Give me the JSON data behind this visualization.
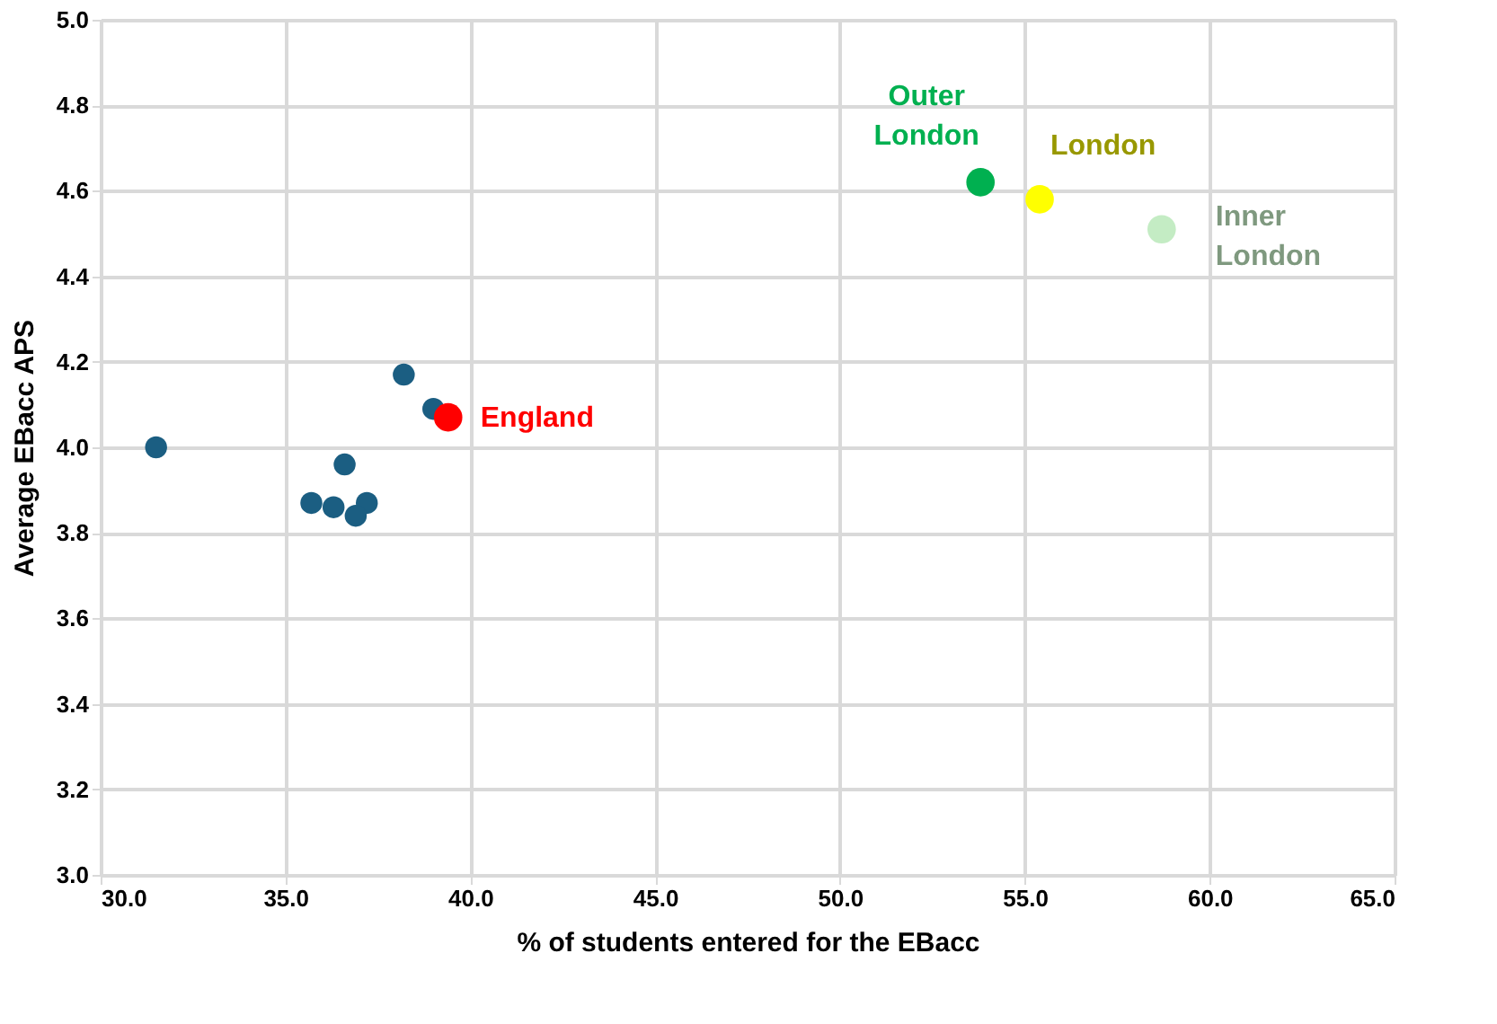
{
  "chart_data": {
    "type": "scatter",
    "xlabel": "% of students entered for the EBacc",
    "ylabel": "Average EBacc APS",
    "xlim": [
      30,
      65
    ],
    "xticks": [
      {
        "value": 30,
        "label": "30.0"
      },
      {
        "value": 35,
        "label": "35.0"
      },
      {
        "value": 40,
        "label": "40.0"
      },
      {
        "value": 45,
        "label": "45.0"
      },
      {
        "value": 50,
        "label": "50.0"
      },
      {
        "value": 55,
        "label": "55.0"
      },
      {
        "value": 60,
        "label": "60.0"
      },
      {
        "value": 65,
        "label": "65.0"
      }
    ],
    "ylim": [
      3.0,
      5.0
    ],
    "yticks": [
      {
        "value": 3.0,
        "label": "3.0"
      },
      {
        "value": 3.2,
        "label": "3.2"
      },
      {
        "value": 3.4,
        "label": "3.4"
      },
      {
        "value": 3.6,
        "label": "3.6"
      },
      {
        "value": 3.8,
        "label": "3.8"
      },
      {
        "value": 4.0,
        "label": "4.0"
      },
      {
        "value": 4.2,
        "label": "4.2"
      },
      {
        "value": 4.4,
        "label": "4.4"
      },
      {
        "value": 4.6,
        "label": "4.6"
      },
      {
        "value": 4.8,
        "label": "4.8"
      },
      {
        "value": 5.0,
        "label": "5.0"
      }
    ],
    "grid": true,
    "marker": "circle",
    "series": [
      {
        "color": "#1b5e82",
        "x": [
          31.5,
          38.2,
          39.0,
          36.6,
          35.7,
          36.3,
          37.2,
          36.9
        ],
        "values": [
          4.0,
          4.17,
          4.09,
          3.96,
          3.87,
          3.86,
          3.87,
          3.84
        ]
      },
      {
        "name": "England",
        "color": "#ff0000",
        "x": [
          39.4
        ],
        "values": [
          4.07
        ]
      },
      {
        "name": "Outer London",
        "color": "#00b050",
        "x": [
          53.8
        ],
        "values": [
          4.62
        ]
      },
      {
        "name": "London",
        "color": "#ffff00",
        "x": [
          55.4
        ],
        "values": [
          4.58
        ]
      },
      {
        "name": "Inner London",
        "color": "#c4ecc4",
        "x": [
          58.7
        ],
        "values": [
          4.51
        ]
      }
    ]
  }
}
